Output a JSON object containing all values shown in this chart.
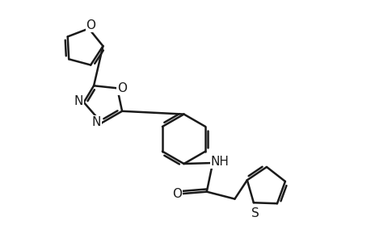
{
  "bg_color": "#ffffff",
  "line_color": "#1a1a1a",
  "line_width": 1.8,
  "font_size": 11,
  "fig_width": 4.6,
  "fig_height": 3.0,
  "dpi": 100,
  "xlim": [
    0,
    9.2
  ],
  "ylim": [
    0,
    6.0
  ]
}
